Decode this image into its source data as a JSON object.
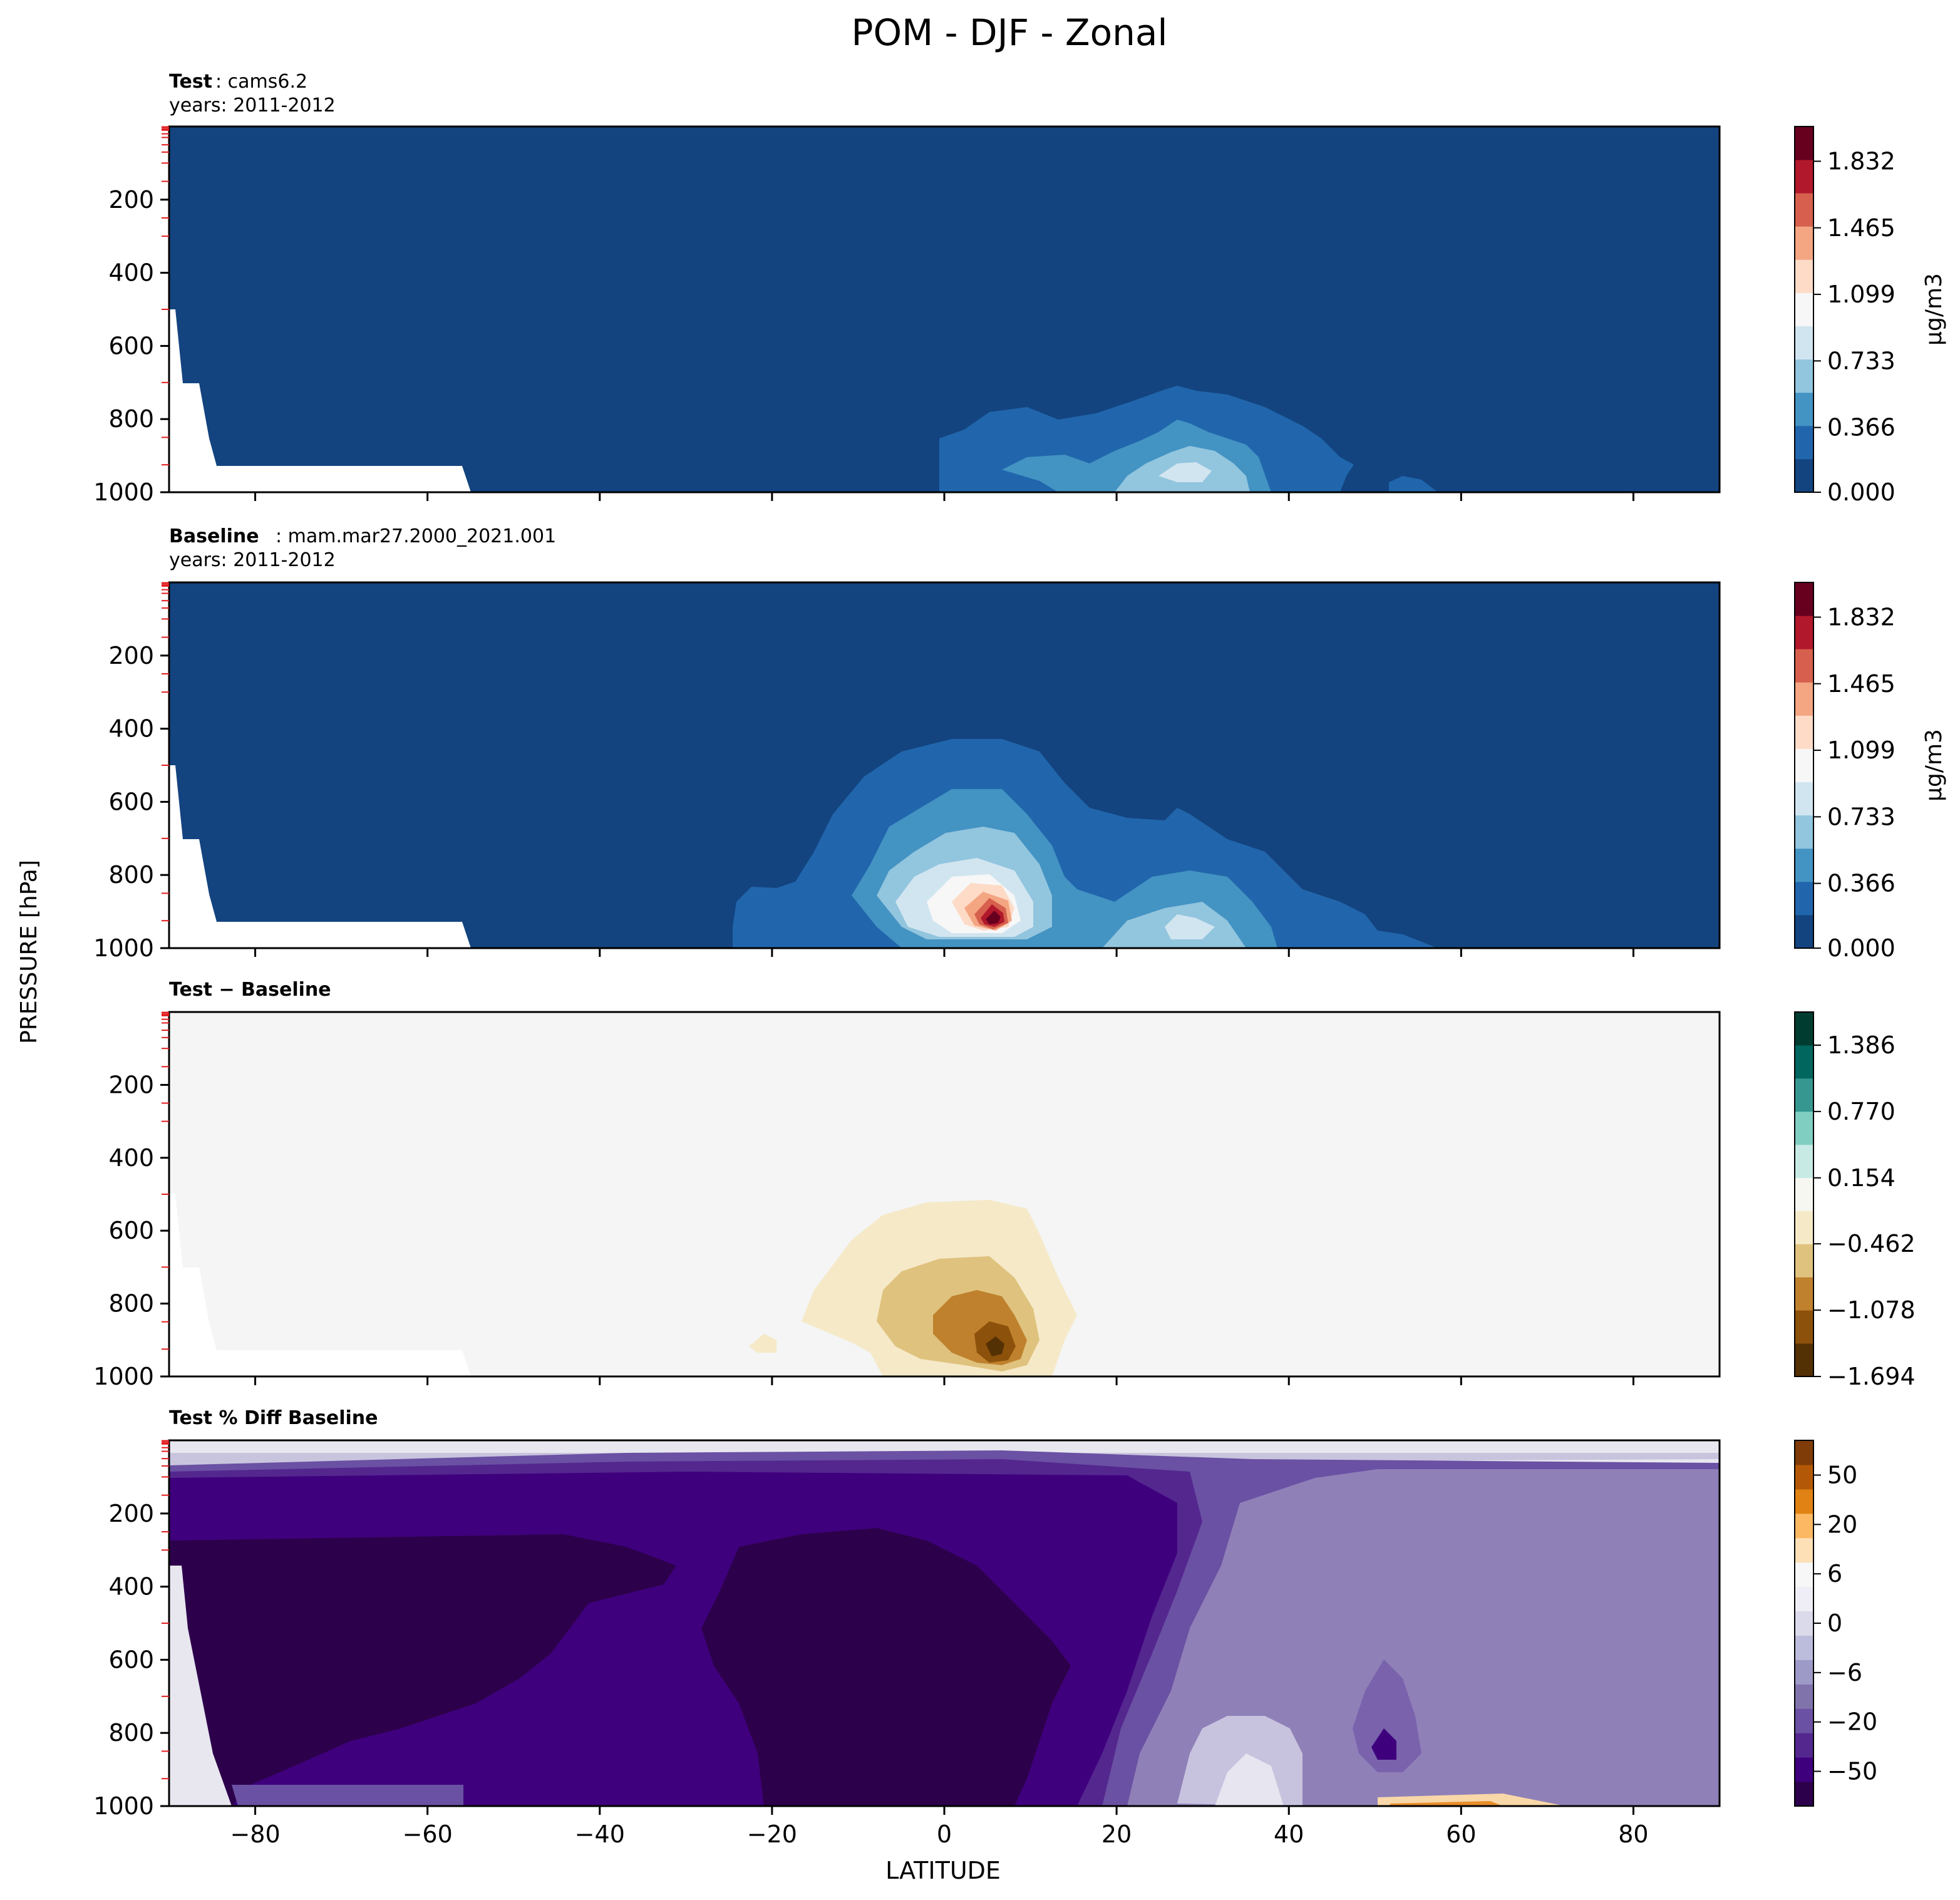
{
  "figure": {
    "title": "POM - DJF - Zonal",
    "ylabel": "PRESSURE [hPa]",
    "xlabel": "LATITUDE",
    "xticks": [
      "−80",
      "−60",
      "−40",
      "−20",
      "0",
      "20",
      "40",
      "60",
      "80"
    ],
    "yticks": [
      "200",
      "400",
      "600",
      "800",
      "1000"
    ]
  },
  "panels": [
    {
      "label_bold": "Test",
      "label_rest": ": cams6.2",
      "subtitle": "years: 2011-2012",
      "colorbar_label": "μg/m3",
      "colorbar_ticks": [
        "1.832",
        "1.465",
        "1.099",
        "0.733",
        "0.366",
        "0.000"
      ]
    },
    {
      "label_bold": "Baseline",
      "label_rest": ": mam.mar27.2000_2021.001",
      "subtitle": "years: 2011-2012",
      "colorbar_label": "μg/m3",
      "colorbar_ticks": [
        "1.832",
        "1.465",
        "1.099",
        "0.733",
        "0.366",
        "0.000"
      ]
    },
    {
      "label_bold": "Test − Baseline",
      "label_rest": "",
      "subtitle": "",
      "colorbar_label": "",
      "colorbar_ticks": [
        "1.386",
        "0.770",
        "0.154",
        "−0.462",
        "−1.078",
        "−1.694"
      ]
    },
    {
      "label_bold": "Test % Diff Baseline",
      "label_rest": "",
      "subtitle": "",
      "colorbar_label": "",
      "colorbar_ticks": [
        "50",
        "20",
        "6",
        "0",
        "−6",
        "−20",
        "−50"
      ]
    }
  ],
  "chart_data": [
    {
      "type": "heatmap",
      "panel": "Test",
      "xlim": [
        -90,
        90
      ],
      "ylim": [
        1000,
        0
      ],
      "units": "μg/m3",
      "levels": [
        0.0,
        0.183,
        0.366,
        0.549,
        0.733,
        0.916,
        1.099,
        1.282,
        1.465,
        1.648,
        1.832,
        2.015
      ],
      "colors": [
        "#134480",
        "#2166ac",
        "#4393c3",
        "#92c5de",
        "#d1e5f0",
        "#f7f7f7",
        "#fddbc7",
        "#f4a582",
        "#d6604d",
        "#b2182b",
        "#67001f"
      ],
      "features": [
        {
          "region": "tropics lower troposphere",
          "lat_range": [
            0,
            48
          ],
          "pressure_range": [
            700,
            1000
          ],
          "max_value": 0.9
        }
      ]
    },
    {
      "type": "heatmap",
      "panel": "Baseline",
      "xlim": [
        -90,
        90
      ],
      "ylim": [
        1000,
        0
      ],
      "units": "μg/m3",
      "features": [
        {
          "region": "equatorial maximum",
          "lat": 6,
          "pressure": 920,
          "max_value": 2.0
        },
        {
          "region": "NH subtropics",
          "lat_range": [
            15,
            50
          ],
          "pressure_range": [
            650,
            1000
          ],
          "max_value": 0.8
        }
      ]
    },
    {
      "type": "heatmap",
      "panel": "Test − Baseline",
      "xlim": [
        -90,
        90
      ],
      "ylim": [
        1000,
        0
      ],
      "levels": [
        -1.694,
        -1.386,
        -1.078,
        -0.77,
        -0.462,
        -0.154,
        0.154,
        0.462,
        0.77,
        1.078,
        1.386,
        1.694
      ],
      "features": [
        {
          "region": "equatorial minimum",
          "lat": 6,
          "pressure": 920,
          "min_value": -1.69
        }
      ]
    },
    {
      "type": "heatmap",
      "panel": "Test % Diff Baseline",
      "xlim": [
        -90,
        90
      ],
      "ylim": [
        1000,
        0
      ],
      "levels": [
        -100,
        -90,
        -80,
        -70,
        -60,
        -50,
        -40,
        -30,
        -20,
        -15,
        -10,
        -8,
        -6,
        -4,
        -2,
        0,
        2,
        4,
        6,
        8,
        10,
        15,
        20,
        30,
        40,
        50,
        60,
        70,
        80
      ]
    }
  ]
}
